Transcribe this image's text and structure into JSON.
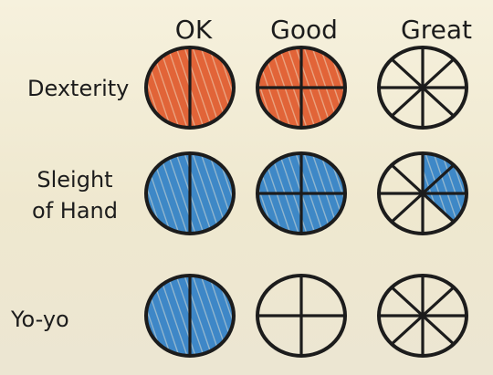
{
  "columns": [
    "OK",
    "Good",
    "Great"
  ],
  "rows": [
    "Dexterity",
    "Sleight of Hand",
    "Yo-yo"
  ],
  "colors": {
    "ink": "#1c1c1c",
    "orange": "#e0582a",
    "blue": "#2f7fc6",
    "paper": "#f3eed8"
  },
  "cells": [
    {
      "row": "Dexterity",
      "column": "OK",
      "divisions": 2,
      "filled": 2,
      "fill": "orange"
    },
    {
      "row": "Dexterity",
      "column": "Good",
      "divisions": 4,
      "filled": 4,
      "fill": "orange"
    },
    {
      "row": "Dexterity",
      "column": "Great",
      "divisions": 8,
      "filled": 0,
      "fill": "none"
    },
    {
      "row": "Sleight of Hand",
      "column": "OK",
      "divisions": 2,
      "filled": 2,
      "fill": "blue"
    },
    {
      "row": "Sleight of Hand",
      "column": "Good",
      "divisions": 4,
      "filled": 4,
      "fill": "blue"
    },
    {
      "row": "Sleight of Hand",
      "column": "Great",
      "divisions": 8,
      "filled": 3,
      "fill": "blue"
    },
    {
      "row": "Yo-yo",
      "column": "OK",
      "divisions": 2,
      "filled": 2,
      "fill": "blue"
    },
    {
      "row": "Yo-yo",
      "column": "Good",
      "divisions": 4,
      "filled": 0,
      "fill": "none"
    },
    {
      "row": "Yo-yo",
      "column": "Great",
      "divisions": 8,
      "filled": 0,
      "fill": "none"
    }
  ]
}
